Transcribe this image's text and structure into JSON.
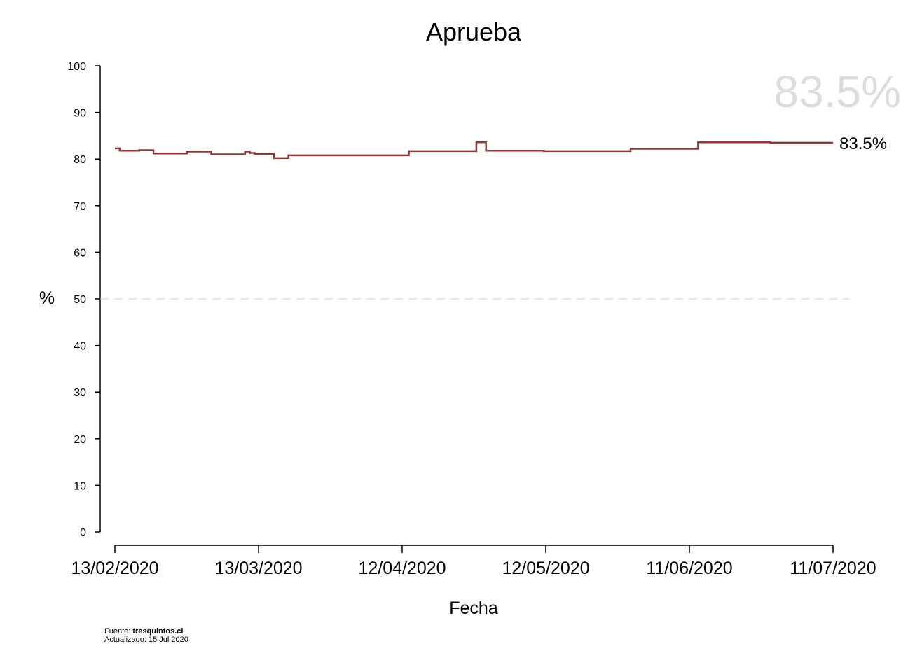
{
  "chart_data": {
    "type": "line",
    "title": "Aprueba",
    "xlabel": "Fecha",
    "ylabel": "%",
    "ylim": [
      0,
      100
    ],
    "yticks": [
      0,
      10,
      20,
      30,
      40,
      50,
      60,
      70,
      80,
      90,
      100
    ],
    "xticks": [
      "13/02/2020",
      "13/03/2020",
      "12/04/2020",
      "12/05/2020",
      "11/06/2020",
      "11/07/2020"
    ],
    "xlim": [
      "2020-02-13",
      "2020-07-11"
    ],
    "reference_line": 50,
    "line_color": "#8b3a3a",
    "big_label": "83.5%",
    "big_label_color": "#dcdcdc",
    "end_label": "83.5%",
    "series": [
      {
        "interpolation": "step",
        "x": [
          "2020-02-13",
          "2020-02-14",
          "2020-02-18",
          "2020-02-21",
          "2020-02-28",
          "2020-03-04",
          "2020-03-11",
          "2020-03-12",
          "2020-03-13",
          "2020-03-17",
          "2020-03-20",
          "2020-03-27",
          "2020-04-14",
          "2020-04-28",
          "2020-04-30",
          "2020-05-12",
          "2020-05-30",
          "2020-06-13",
          "2020-06-28",
          "2020-07-11"
        ],
        "y": [
          82.3,
          81.8,
          81.9,
          81.2,
          81.6,
          81.0,
          81.6,
          81.3,
          81.1,
          80.2,
          80.8,
          80.8,
          81.7,
          83.6,
          81.8,
          81.7,
          82.2,
          83.6,
          83.5,
          83.5
        ]
      }
    ]
  },
  "footer": {
    "source_prefix": "Fuente: ",
    "source_name": "tresquintos.cl",
    "updated": "Actualizado: 15 Jul 2020"
  }
}
